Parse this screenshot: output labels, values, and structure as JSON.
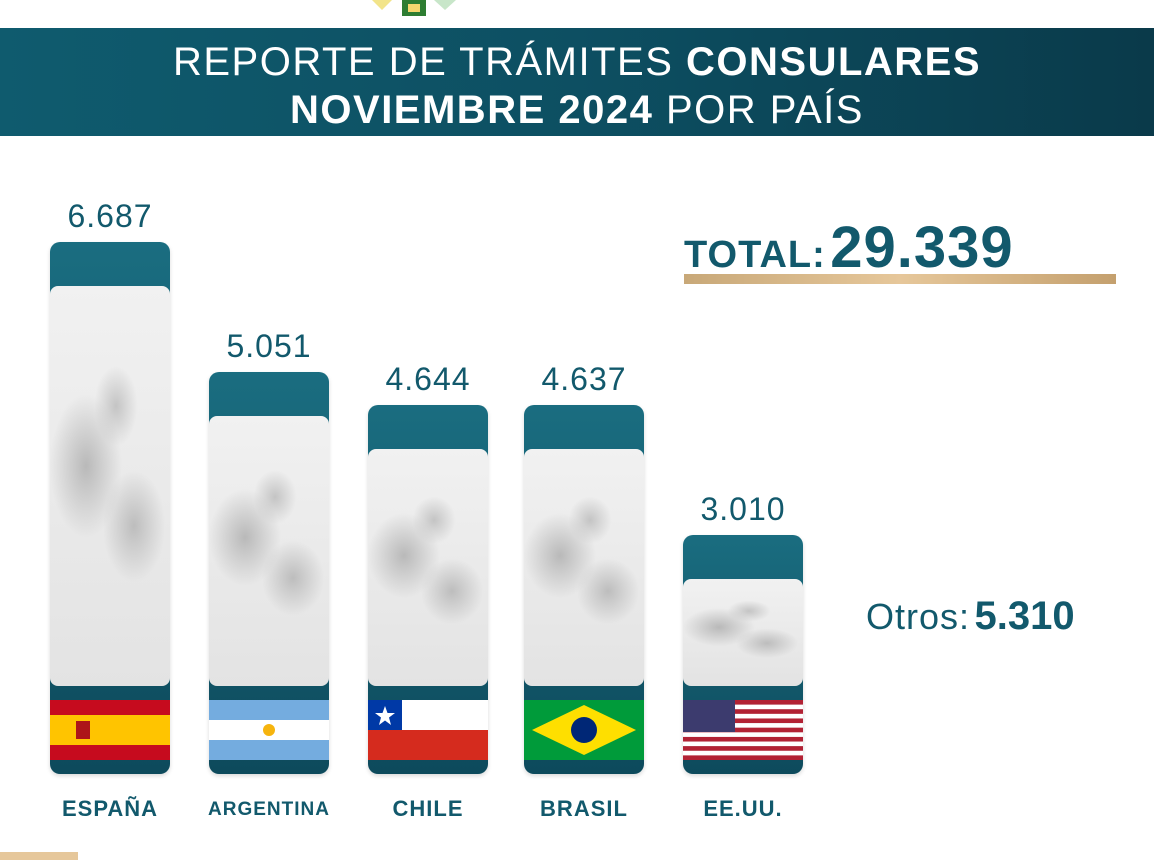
{
  "header": {
    "title_light_1": "REPORTE DE TRÁMITES",
    "title_bold_1": "CONSULARES",
    "title_bold_2": "NOVIEMBRE 2024",
    "title_light_2": "POR PAÍS"
  },
  "total": {
    "label": "TOTAL:",
    "value": "29.339"
  },
  "otros": {
    "label": "Otros:",
    "value": "5.310"
  },
  "colors": {
    "primary": "#12596c",
    "bar_top": "#1a6d80",
    "bar_bottom": "#0d4a5c",
    "accent_gold": "#e6c79a"
  },
  "chart_data": {
    "type": "bar",
    "categories": [
      "ESPAÑA",
      "ARGENTINA",
      "CHILE",
      "BRASIL",
      "EE.UU."
    ],
    "values": [
      6687,
      5051,
      4644,
      4637,
      3010
    ],
    "value_labels": [
      "6.687",
      "5.051",
      "4.644",
      "4.637",
      "3.010"
    ],
    "flags": [
      "spain-flag",
      "argentina-flag",
      "chile-flag",
      "brazil-flag",
      "usa-flag"
    ],
    "ylim": [
      0,
      6687
    ],
    "grid": false,
    "legend": "none"
  }
}
